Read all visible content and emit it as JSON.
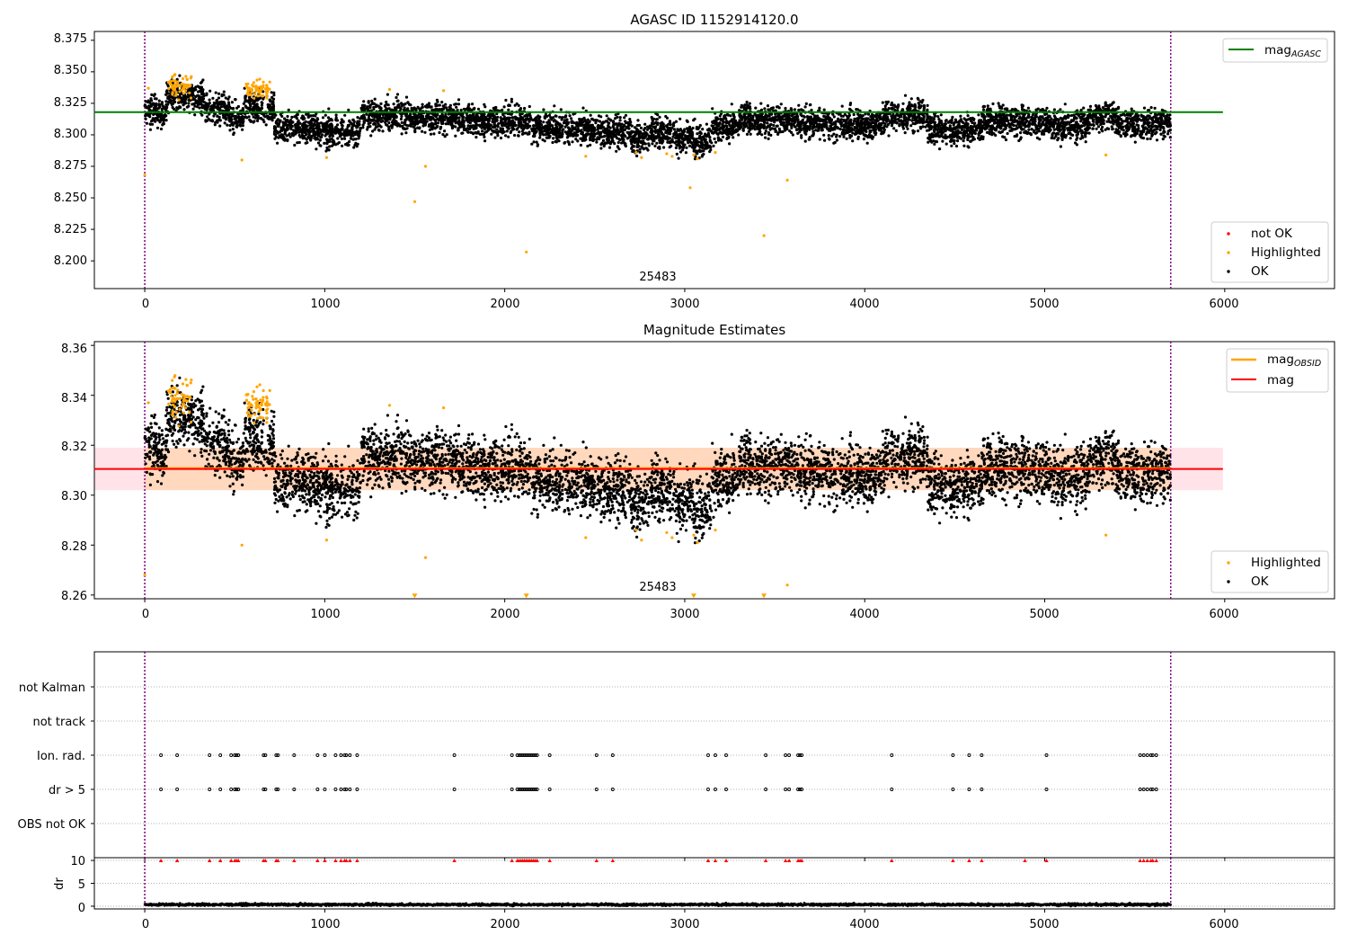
{
  "chart_data": [
    {
      "type": "scatter",
      "title": "AGASC ID 1152914120.0",
      "xlim": [
        -280,
        6610
      ],
      "ylim": [
        8.178,
        8.382
      ],
      "xticks": [
        "0",
        "1000",
        "2000",
        "3000",
        "4000",
        "5000",
        "6000"
      ],
      "yticks": [
        "8.200",
        "8.225",
        "8.250",
        "8.275",
        "8.300",
        "8.325",
        "8.350",
        "8.375"
      ],
      "vlines": [
        0,
        5700
      ],
      "annotation": {
        "text": "25483",
        "x": 2850,
        "y": 8.189
      },
      "hline": {
        "name": "mag_AGASC",
        "value": 8.318,
        "x_end": 5990,
        "color": "#008000"
      },
      "legend_lines": [
        {
          "main": "mag",
          "sub": "AGASC"
        }
      ],
      "legend_points": [
        {
          "label": "not OK",
          "color": "#ff0000"
        },
        {
          "label": "Highlighted",
          "color": "#ffa500"
        },
        {
          "label": "OK",
          "color": "#000000"
        }
      ],
      "series": [
        {
          "name": "OK",
          "color": "#000000",
          "segments": [
            [
              0,
              120,
              8.318
            ],
            [
              120,
              330,
              8.331
            ],
            [
              330,
              470,
              8.32
            ],
            [
              470,
              550,
              8.313
            ],
            [
              550,
              720,
              8.322
            ],
            [
              720,
              950,
              8.306
            ],
            [
              950,
              1200,
              8.303
            ],
            [
              1200,
              1500,
              8.315
            ],
            [
              1500,
              1750,
              8.314
            ],
            [
              1750,
              2150,
              8.311
            ],
            [
              2150,
              2500,
              8.305
            ],
            [
              2500,
              2700,
              8.303
            ],
            [
              2700,
              2800,
              8.297
            ],
            [
              2800,
              2950,
              8.302
            ],
            [
              2950,
              3050,
              8.298
            ],
            [
              3050,
              3150,
              8.295
            ],
            [
              3150,
              3300,
              8.306
            ],
            [
              3300,
              3600,
              8.312
            ],
            [
              3600,
              3800,
              8.31
            ],
            [
              3800,
              4100,
              8.308
            ],
            [
              4100,
              4350,
              8.315
            ],
            [
              4350,
              4650,
              8.304
            ],
            [
              4650,
              5000,
              8.311
            ],
            [
              5000,
              5250,
              8.308
            ],
            [
              5250,
              5400,
              8.315
            ],
            [
              5400,
              5700,
              8.309
            ]
          ],
          "spread": 0.006
        },
        {
          "name": "Highlighted",
          "color": "#ffa500",
          "clusters": [
            [
              130,
              260,
              8.339,
              0.006
            ],
            [
              560,
              700,
              8.336,
              0.005
            ]
          ],
          "points": [
            [
              0,
              8.268
            ],
            [
              20,
              8.337
            ],
            [
              540,
              8.28
            ],
            [
              1010,
              8.282
            ],
            [
              1360,
              8.336
            ],
            [
              1500,
              8.247
            ],
            [
              1560,
              8.275
            ],
            [
              1660,
              8.335
            ],
            [
              2120,
              8.207
            ],
            [
              2450,
              8.283
            ],
            [
              2730,
              8.286
            ],
            [
              2760,
              8.282
            ],
            [
              2900,
              8.285
            ],
            [
              2930,
              8.283
            ],
            [
              3030,
              8.258
            ],
            [
              3050,
              8.284
            ],
            [
              3070,
              8.281
            ],
            [
              3170,
              8.286
            ],
            [
              3440,
              8.22
            ],
            [
              3570,
              8.264
            ],
            [
              5340,
              8.284
            ]
          ]
        }
      ]
    },
    {
      "type": "scatter",
      "title": "Magnitude Estimates",
      "xlim": [
        -280,
        6610
      ],
      "ylim": [
        8.2585,
        8.3615
      ],
      "xticks": [
        "0",
        "1000",
        "2000",
        "3000",
        "4000",
        "5000",
        "6000"
      ],
      "yticks": [
        "8.26",
        "8.28",
        "8.30",
        "8.32",
        "8.34",
        "8.36"
      ],
      "vlines": [
        0,
        5700
      ],
      "annotation": {
        "text": "25483",
        "x": 2850,
        "y": 8.2625
      },
      "band_mag": {
        "low": 8.302,
        "high": 8.319,
        "x_end": 5990,
        "color": "#ffc0cb"
      },
      "band_obsid": {
        "low": 8.302,
        "high": 8.319,
        "x_end": 5700,
        "color": "#ffa500"
      },
      "hline": {
        "name": "mag",
        "value": 8.3105,
        "x_end": 5990,
        "color": "#ff0000"
      },
      "legend_lines": [
        {
          "main": "mag",
          "sub": "OBSID",
          "color": "#ffa500"
        },
        {
          "main": "mag",
          "sub": "",
          "color": "#ff0000"
        }
      ],
      "legend_points": [
        {
          "label": "Highlighted",
          "color": "#ffa500"
        },
        {
          "label": "OK",
          "color": "#000000"
        }
      ],
      "series": [
        {
          "name": "OK",
          "color": "#000000",
          "segments": [
            [
              0,
              120,
              8.318
            ],
            [
              120,
              330,
              8.331
            ],
            [
              330,
              470,
              8.32
            ],
            [
              470,
              550,
              8.313
            ],
            [
              550,
              720,
              8.322
            ],
            [
              720,
              950,
              8.306
            ],
            [
              950,
              1200,
              8.303
            ],
            [
              1200,
              1500,
              8.315
            ],
            [
              1500,
              1750,
              8.314
            ],
            [
              1750,
              2150,
              8.311
            ],
            [
              2150,
              2500,
              8.305
            ],
            [
              2500,
              2700,
              8.303
            ],
            [
              2700,
              2800,
              8.297
            ],
            [
              2800,
              2950,
              8.302
            ],
            [
              2950,
              3050,
              8.298
            ],
            [
              3050,
              3150,
              8.295
            ],
            [
              3150,
              3300,
              8.306
            ],
            [
              3300,
              3600,
              8.312
            ],
            [
              3600,
              3800,
              8.31
            ],
            [
              3800,
              4100,
              8.308
            ],
            [
              4100,
              4350,
              8.315
            ],
            [
              4350,
              4650,
              8.304
            ],
            [
              4650,
              5000,
              8.311
            ],
            [
              5000,
              5250,
              8.308
            ],
            [
              5250,
              5400,
              8.315
            ],
            [
              5400,
              5700,
              8.309
            ]
          ],
          "spread": 0.006
        },
        {
          "name": "Highlighted",
          "color": "#ffa500",
          "clusters": [
            [
              130,
              260,
              8.339,
              0.006
            ],
            [
              560,
              700,
              8.336,
              0.005
            ]
          ],
          "points": [
            [
              0,
              8.268
            ],
            [
              20,
              8.337
            ],
            [
              540,
              8.28
            ],
            [
              1010,
              8.282
            ],
            [
              1360,
              8.336
            ],
            [
              1560,
              8.275
            ],
            [
              1660,
              8.335
            ],
            [
              2450,
              8.283
            ],
            [
              2730,
              8.286
            ],
            [
              2760,
              8.282
            ],
            [
              2900,
              8.285
            ],
            [
              2930,
              8.283
            ],
            [
              3050,
              8.284
            ],
            [
              3070,
              8.281
            ],
            [
              3170,
              8.286
            ],
            [
              3570,
              8.264
            ],
            [
              5340,
              8.284
            ]
          ]
        },
        {
          "name": "Highlighted (off-scale)",
          "color": "#ffa500",
          "marker": "triangle-down",
          "points": [
            [
              1500,
              8.2595
            ],
            [
              2120,
              8.2595
            ],
            [
              3050,
              8.2595
            ],
            [
              3440,
              8.2595
            ]
          ]
        }
      ]
    },
    {
      "type": "scatter",
      "title": "",
      "xlim": [
        -280,
        6610
      ],
      "categories": [
        "not Kalman",
        "not track",
        "Ion. rad.",
        "dr > 5",
        "OBS not OK"
      ],
      "vlines": [
        0,
        5700
      ],
      "series": [
        {
          "name": "Ion. rad.",
          "color": "#000000",
          "x": [
            90,
            180,
            360,
            420,
            480,
            500,
            510,
            520,
            660,
            670,
            730,
            740,
            830,
            960,
            1000,
            1060,
            1090,
            1110,
            1120,
            1140,
            1180,
            1720,
            2040,
            2070,
            2080,
            2090,
            2100,
            2110,
            2120,
            2130,
            2140,
            2150,
            2160,
            2170,
            2180,
            2250,
            2510,
            2600,
            3130,
            3170,
            3230,
            3450,
            3560,
            3580,
            3630,
            3640,
            3650,
            4150,
            4490,
            4580,
            4650,
            5010,
            5530,
            5550,
            5570,
            5590,
            5600,
            5620
          ]
        },
        {
          "name": "dr > 5",
          "color": "#000000",
          "x": [
            90,
            180,
            360,
            420,
            480,
            500,
            510,
            520,
            660,
            670,
            730,
            740,
            830,
            960,
            1000,
            1060,
            1090,
            1110,
            1120,
            1140,
            1180,
            1720,
            2040,
            2070,
            2080,
            2090,
            2100,
            2110,
            2120,
            2130,
            2140,
            2150,
            2160,
            2170,
            2180,
            2250,
            2510,
            2600,
            3130,
            3170,
            3230,
            3450,
            3560,
            3580,
            3630,
            3640,
            3650,
            4150,
            4490,
            4580,
            4650,
            5010,
            5530,
            5550,
            5570,
            5590,
            5600,
            5620
          ]
        }
      ]
    },
    {
      "type": "scatter",
      "title": "",
      "xlim": [
        -280,
        6610
      ],
      "ylim": [
        -0.6,
        10.6
      ],
      "ylabel": "dr",
      "xticks": [
        "0",
        "1000",
        "2000",
        "3000",
        "4000",
        "5000",
        "6000"
      ],
      "yticks": [
        "0",
        "5",
        "10"
      ],
      "vlines": [
        0,
        5700
      ],
      "series": [
        {
          "name": "dr",
          "color": "#000000",
          "range": [
            0,
            5700
          ],
          "level": 0.35,
          "spread": 0.25
        },
        {
          "name": "dr (off-scale)",
          "color": "#ff0000",
          "marker": "triangle-up",
          "value": 10,
          "x": [
            90,
            180,
            360,
            420,
            480,
            500,
            510,
            520,
            660,
            670,
            730,
            740,
            830,
            960,
            1000,
            1060,
            1090,
            1110,
            1120,
            1140,
            1180,
            1720,
            2040,
            2070,
            2080,
            2090,
            2100,
            2110,
            2120,
            2130,
            2140,
            2150,
            2160,
            2170,
            2180,
            2250,
            2510,
            2600,
            3130,
            3170,
            3230,
            3450,
            3560,
            3580,
            3630,
            3640,
            3650,
            4150,
            4490,
            4580,
            4650,
            4890,
            5010,
            5530,
            5550,
            5570,
            5590,
            5600,
            5620
          ]
        }
      ]
    }
  ]
}
